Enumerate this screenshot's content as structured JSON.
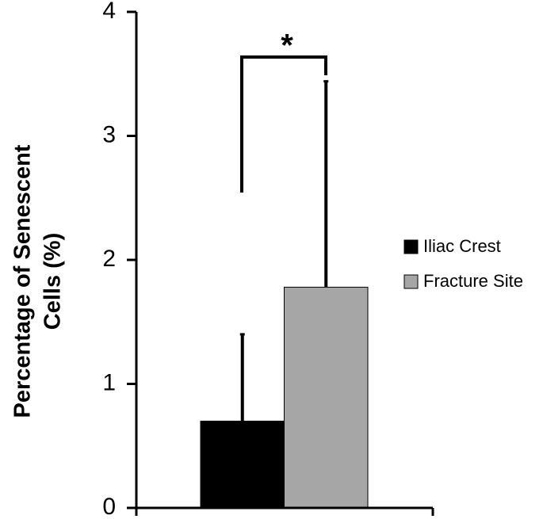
{
  "chart_data": {
    "type": "bar",
    "ylabel": [
      "Percentage of Senescent",
      "Cells (%)"
    ],
    "series": [
      {
        "name": "Iliac Crest",
        "color": "#000000",
        "values": [
          0.7
        ],
        "errors": [
          0.7
        ]
      },
      {
        "name": "Fracture Site",
        "color": "#a6a6a6",
        "values": [
          1.78
        ],
        "errors": [
          1.66
        ]
      }
    ],
    "ylim": [
      0,
      4
    ],
    "yticks": [
      0,
      1,
      2,
      3,
      4
    ],
    "annotation": "*",
    "legend": "right"
  }
}
